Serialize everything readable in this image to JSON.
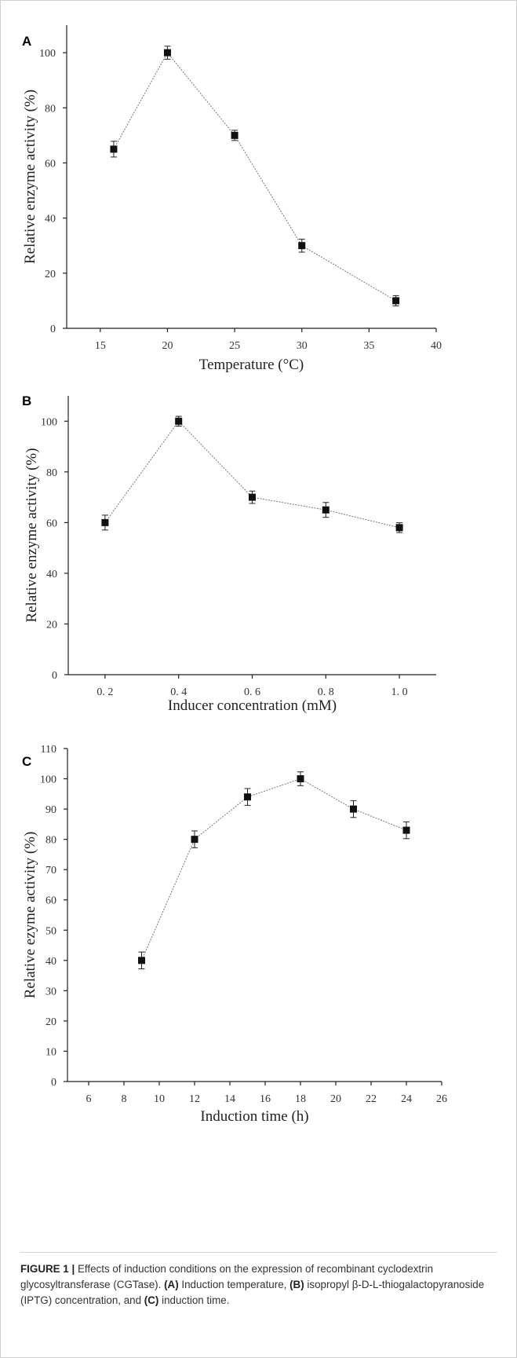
{
  "chart_data": [
    {
      "panel": "A",
      "type": "line",
      "xlabel": "Temperature (°C)",
      "ylabel": "Relative enzyme activity (%)",
      "xlim": [
        12.5,
        40
      ],
      "ylim": [
        0,
        110
      ],
      "xticks": [
        15,
        20,
        25,
        30,
        35,
        40
      ],
      "yticks": [
        0,
        20,
        40,
        60,
        80,
        100
      ],
      "x": [
        16,
        20,
        25,
        30,
        37
      ],
      "values": [
        65,
        100,
        70,
        30,
        10
      ],
      "errors": [
        2,
        1.5,
        1,
        1.5,
        1
      ],
      "marker": "square"
    },
    {
      "panel": "B",
      "type": "line",
      "xlabel": "Inducer concentration (mM)",
      "ylabel": "Relative enzyme activity (%)",
      "xlim": [
        0.1,
        1.1
      ],
      "ylim": [
        0,
        110
      ],
      "xticks": [
        0.2,
        0.4,
        0.6,
        0.8,
        1.0
      ],
      "xticklabels": [
        "0. 2",
        "0. 4",
        "0. 6",
        "0. 8",
        "1. 0"
      ],
      "yticks": [
        0,
        20,
        40,
        60,
        80,
        100
      ],
      "x": [
        0.2,
        0.4,
        0.6,
        0.8,
        1.0
      ],
      "values": [
        60,
        100,
        70,
        65,
        58
      ],
      "errors": [
        2,
        1,
        1.5,
        2,
        1
      ],
      "marker": "square"
    },
    {
      "panel": "C",
      "type": "line",
      "xlabel": "Induction time (h)",
      "ylabel": "Relative ezyme activity (%)",
      "xlim": [
        4.8,
        26
      ],
      "ylim": [
        0,
        110
      ],
      "xticks": [
        6,
        8,
        10,
        12,
        14,
        16,
        18,
        20,
        22,
        24,
        26
      ],
      "yticks": [
        0,
        10,
        20,
        30,
        40,
        50,
        60,
        70,
        80,
        90,
        100,
        110
      ],
      "x": [
        9,
        12,
        15,
        18,
        21,
        24
      ],
      "values": [
        40,
        80,
        94,
        100,
        90,
        83
      ],
      "errors": [
        2,
        2,
        2,
        1.5,
        2,
        2
      ],
      "marker": "square"
    }
  ],
  "caption": {
    "label": "FIGURE 1 |",
    "text_1": " Effects of induction conditions on the expression of recombinant cyclodextrin glycosyltransferase (CGTase). ",
    "a": "(A)",
    "text_2": " Induction temperature, ",
    "b": "(B)",
    "text_3": " isopropyl β-D-L-thiogalactopyranoside (IPTG) concentration, and ",
    "c": "(C)",
    "text_4": " induction time."
  }
}
